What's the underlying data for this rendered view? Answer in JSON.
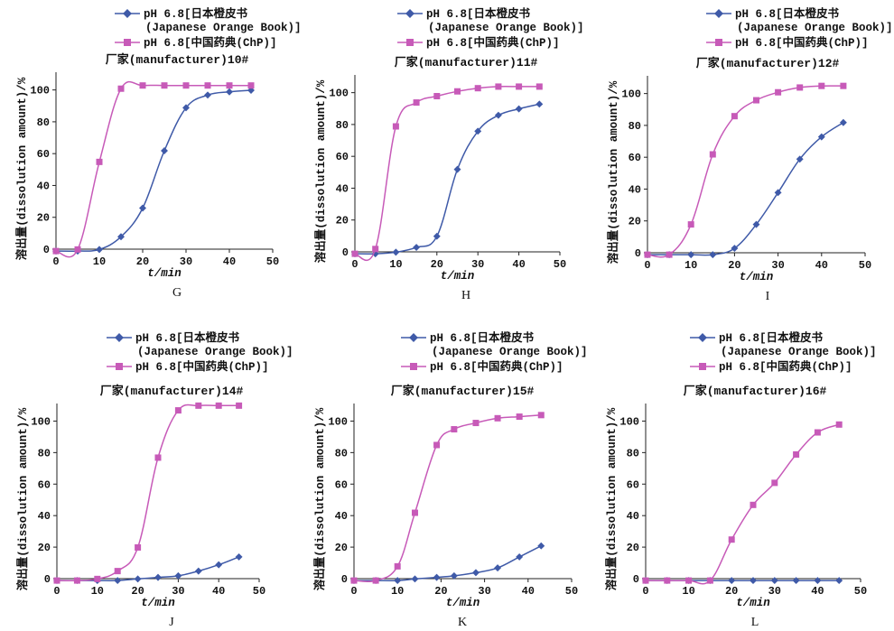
{
  "colors": {
    "series1": "#3f5aa8",
    "series2": "#c75ab8",
    "axis": "#222222"
  },
  "legend": {
    "series1_line1": "pH 6.8[日本橙皮书",
    "series1_line2": "(Japanese Orange Book)]",
    "series2": "pH 6.8[中国药典(ChP)]"
  },
  "chart_data": [
    {
      "type": "line",
      "panel": "G",
      "title": "厂家(manufacturer)10#",
      "xlabel": "t/min",
      "ylabel": "溶出量(dissolution amount)/%",
      "xlim": [
        0,
        50
      ],
      "ylim": [
        0,
        110
      ],
      "xticks": [
        "0",
        "10",
        "20",
        "30",
        "40",
        "50"
      ],
      "yticks": [
        "0",
        "20",
        "40",
        "60",
        "80",
        "100"
      ],
      "series": [
        {
          "name": "pH 6.8[日本橙皮书(Japanese Orange Book)]",
          "x": [
            0,
            5,
            10,
            15,
            20,
            25,
            30,
            35,
            40,
            45
          ],
          "y": [
            0,
            0,
            1,
            9,
            27,
            63,
            90,
            98,
            100,
            101
          ]
        },
        {
          "name": "pH 6.8[中国药典(ChP)]",
          "x": [
            0,
            5,
            10,
            15,
            20,
            25,
            30,
            35,
            40,
            45
          ],
          "y": [
            0,
            1,
            56,
            102,
            104,
            104,
            104,
            104,
            104,
            104
          ]
        }
      ]
    },
    {
      "type": "line",
      "panel": "H",
      "title": "厂家(manufacturer)11#",
      "xlabel": "t/min",
      "ylabel": "溶出量(dissolution amount)/%",
      "xlim": [
        0,
        50
      ],
      "ylim": [
        0,
        110
      ],
      "xticks": [
        "0",
        "10",
        "20",
        "30",
        "40",
        "50"
      ],
      "yticks": [
        "0",
        "20",
        "40",
        "60",
        "80",
        "100"
      ],
      "series": [
        {
          "name": "pH 6.8[日本橙皮书(Japanese Orange Book)]",
          "x": [
            0,
            5,
            10,
            15,
            20,
            25,
            30,
            35,
            40,
            45
          ],
          "y": [
            0,
            0,
            1,
            4,
            11,
            53,
            77,
            87,
            91,
            94
          ]
        },
        {
          "name": "pH 6.8[中国药典(ChP)]",
          "x": [
            0,
            5,
            10,
            15,
            20,
            25,
            30,
            35,
            40,
            45
          ],
          "y": [
            0,
            3,
            80,
            95,
            99,
            102,
            104,
            105,
            105,
            105
          ]
        }
      ]
    },
    {
      "type": "line",
      "panel": "I",
      "title": "厂家(manufacturer)12#",
      "xlabel": "t/min",
      "ylabel": "溶出量(dissolution amount)/%",
      "xlim": [
        0,
        50
      ],
      "ylim": [
        0,
        110
      ],
      "xticks": [
        "0",
        "10",
        "20",
        "30",
        "40",
        "50"
      ],
      "yticks": [
        "0",
        "20",
        "40",
        "60",
        "80",
        "100"
      ],
      "series": [
        {
          "name": "pH 6.8[日本橙皮书(Japanese Orange Book)]",
          "x": [
            0,
            5,
            10,
            15,
            20,
            25,
            30,
            35,
            40,
            45
          ],
          "y": [
            0,
            0,
            0,
            0,
            4,
            19,
            39,
            60,
            74,
            83
          ]
        },
        {
          "name": "pH 6.8[中国药典(ChP)]",
          "x": [
            0,
            5,
            10,
            15,
            20,
            25,
            30,
            35,
            40,
            45
          ],
          "y": [
            0,
            0,
            19,
            63,
            87,
            97,
            102,
            105,
            106,
            106
          ]
        }
      ]
    },
    {
      "type": "line",
      "panel": "J",
      "title": "厂家(manufacturer)14#",
      "xlabel": "t/min",
      "ylabel": "溶出量(dissolution amount)/%",
      "xlim": [
        0,
        50
      ],
      "ylim": [
        0,
        110
      ],
      "xticks": [
        "0",
        "10",
        "20",
        "30",
        "40",
        "50"
      ],
      "yticks": [
        "0",
        "20",
        "40",
        "60",
        "80",
        "100"
      ],
      "series": [
        {
          "name": "pH 6.8[日本橙皮书(Japanese Orange Book)]",
          "x": [
            0,
            5,
            10,
            15,
            20,
            25,
            30,
            35,
            40,
            45
          ],
          "y": [
            0,
            0,
            0,
            0,
            1,
            2,
            3,
            6,
            10,
            15
          ]
        },
        {
          "name": "pH 6.8[中国药典(ChP)]",
          "x": [
            0,
            5,
            10,
            15,
            20,
            25,
            30,
            35,
            40,
            45
          ],
          "y": [
            0,
            0,
            1,
            6,
            21,
            78,
            108,
            111,
            111,
            111
          ]
        }
      ]
    },
    {
      "type": "line",
      "panel": "K",
      "title": "厂家(manufacturer)15#",
      "xlabel": "t/min",
      "ylabel": "溶出量(dissolution amount)/%",
      "xlim": [
        0,
        50
      ],
      "ylim": [
        0,
        110
      ],
      "xticks": [
        "0",
        "10",
        "20",
        "30",
        "40",
        "50"
      ],
      "yticks": [
        "0",
        "20",
        "40",
        "60",
        "80",
        "100"
      ],
      "series": [
        {
          "name": "pH 6.8[日本橙皮书(Japanese Orange Book)]",
          "x": [
            0,
            5,
            10,
            14,
            19,
            23,
            28,
            33,
            38,
            43
          ],
          "y": [
            0,
            0,
            0,
            1,
            2,
            3,
            5,
            8,
            15,
            22
          ]
        },
        {
          "name": "pH 6.8[中国药典(ChP)]",
          "x": [
            0,
            5,
            10,
            14,
            19,
            23,
            28,
            33,
            38,
            43
          ],
          "y": [
            0,
            0,
            9,
            43,
            86,
            96,
            100,
            103,
            104,
            105
          ]
        }
      ]
    },
    {
      "type": "line",
      "panel": "L",
      "title": "厂家(manufacturer)16#",
      "xlabel": "t/min",
      "ylabel": "溶出量(dissolution amount)/%",
      "xlim": [
        0,
        50
      ],
      "ylim": [
        0,
        110
      ],
      "xticks": [
        "0",
        "10",
        "20",
        "30",
        "40",
        "50"
      ],
      "yticks": [
        "0",
        "20",
        "40",
        "60",
        "80",
        "100"
      ],
      "series": [
        {
          "name": "pH 6.8[日本橙皮书(Japanese Orange Book)]",
          "x": [
            0,
            5,
            10,
            15,
            20,
            25,
            30,
            35,
            40,
            45
          ],
          "y": [
            0,
            0,
            0,
            0,
            0,
            0,
            0,
            0,
            0,
            0
          ]
        },
        {
          "name": "pH 6.8[中国药典(ChP)]",
          "x": [
            0,
            5,
            10,
            15,
            20,
            25,
            30,
            35,
            40,
            45
          ],
          "y": [
            0,
            0,
            0,
            0,
            26,
            48,
            62,
            80,
            94,
            99
          ]
        }
      ]
    }
  ]
}
